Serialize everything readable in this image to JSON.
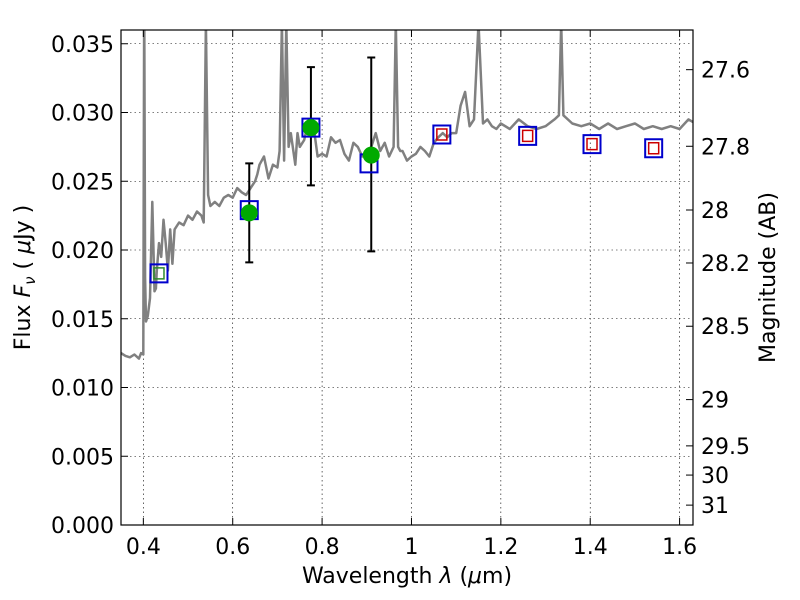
{
  "chart_data": {
    "type": "scatter",
    "title": "",
    "xlabel_parts": [
      "Wavelength  ",
      "λ",
      " (",
      "μ",
      "m)"
    ],
    "ylabel_parts": [
      "Flux  ",
      "F",
      "ν",
      "  ( ",
      "μ",
      "Jy )"
    ],
    "y2label": "Magnitude (AB)",
    "xlim": [
      0.35,
      1.63
    ],
    "ylim": [
      0.0,
      0.036
    ],
    "grid": true,
    "legend": "none",
    "x_ticks": [
      0.4,
      0.6,
      0.8,
      1.0,
      1.2,
      1.4,
      1.6
    ],
    "x_tick_labels": [
      "0.4",
      "0.6",
      "0.8",
      "1",
      "1.2",
      "1.4",
      "1.6"
    ],
    "y_ticks": [
      0.0,
      0.005,
      0.01,
      0.015,
      0.02,
      0.025,
      0.03,
      0.035
    ],
    "y_tick_labels": [
      "0.000",
      "0.005",
      "0.010",
      "0.015",
      "0.020",
      "0.025",
      "0.030",
      "0.035"
    ],
    "y2_ticks": [
      27.6,
      27.8,
      28.0,
      28.2,
      28.5,
      29.0,
      29.5,
      30.0,
      31.0
    ],
    "y2_tick_labels": [
      "27.6",
      "27.8",
      "28",
      "28.2",
      "28.5",
      "29",
      "29.5",
      "30",
      "31"
    ],
    "colors": {
      "spectrum": "#808080",
      "model_box": "#0000cc",
      "model_inner": "#cc0000",
      "model_inner_green": "#2e8b2e",
      "observed": "#00aa00",
      "errorbar": "#000000"
    },
    "series": [
      {
        "kind": "spectrum",
        "x": [
          0.35,
          0.36,
          0.37,
          0.38,
          0.39,
          0.395,
          0.4,
          0.402,
          0.404,
          0.406,
          0.41,
          0.415,
          0.42,
          0.425,
          0.428,
          0.43,
          0.435,
          0.44,
          0.445,
          0.45,
          0.455,
          0.46,
          0.465,
          0.47,
          0.48,
          0.49,
          0.5,
          0.51,
          0.52,
          0.53,
          0.535,
          0.54,
          0.545,
          0.55,
          0.56,
          0.57,
          0.58,
          0.59,
          0.6,
          0.61,
          0.62,
          0.63,
          0.64,
          0.65,
          0.655,
          0.66,
          0.67,
          0.68,
          0.69,
          0.7,
          0.705,
          0.71,
          0.715,
          0.72,
          0.725,
          0.73,
          0.74,
          0.745,
          0.75,
          0.76,
          0.77,
          0.78,
          0.79,
          0.8,
          0.81,
          0.82,
          0.83,
          0.84,
          0.85,
          0.86,
          0.87,
          0.88,
          0.89,
          0.9,
          0.91,
          0.92,
          0.93,
          0.94,
          0.95,
          0.96,
          0.965,
          0.97,
          0.975,
          0.98,
          0.99,
          1.0,
          1.01,
          1.02,
          1.03,
          1.04,
          1.05,
          1.06,
          1.07,
          1.08,
          1.09,
          1.1,
          1.11,
          1.12,
          1.13,
          1.14,
          1.15,
          1.16,
          1.17,
          1.18,
          1.19,
          1.2,
          1.22,
          1.24,
          1.26,
          1.28,
          1.3,
          1.32,
          1.33,
          1.335,
          1.34,
          1.36,
          1.38,
          1.4,
          1.42,
          1.44,
          1.46,
          1.48,
          1.5,
          1.52,
          1.54,
          1.56,
          1.58,
          1.6,
          1.62,
          1.63
        ],
        "y": [
          0.0125,
          0.0123,
          0.0122,
          0.0124,
          0.0121,
          0.0125,
          0.0124,
          0.04,
          0.018,
          0.0148,
          0.0152,
          0.0165,
          0.0235,
          0.017,
          0.0172,
          0.0185,
          0.0205,
          0.0195,
          0.0222,
          0.0205,
          0.0185,
          0.0215,
          0.019,
          0.0215,
          0.022,
          0.0218,
          0.0225,
          0.0222,
          0.0228,
          0.0225,
          0.022,
          0.0365,
          0.024,
          0.0232,
          0.0235,
          0.0232,
          0.0238,
          0.024,
          0.0238,
          0.0245,
          0.0242,
          0.024,
          0.0245,
          0.025,
          0.0255,
          0.0262,
          0.0268,
          0.0252,
          0.0262,
          0.026,
          0.0272,
          0.0365,
          0.0265,
          0.0365,
          0.0275,
          0.0285,
          0.0262,
          0.0285,
          0.0275,
          0.028,
          0.0295,
          0.0292,
          0.0268,
          0.027,
          0.0268,
          0.0282,
          0.0278,
          0.028,
          0.027,
          0.0265,
          0.0278,
          0.0275,
          0.0268,
          0.0272,
          0.0275,
          0.0285,
          0.0272,
          0.0278,
          0.0268,
          0.0275,
          0.0365,
          0.0275,
          0.0272,
          0.0272,
          0.0265,
          0.0268,
          0.027,
          0.0275,
          0.0272,
          0.0268,
          0.0278,
          0.0282,
          0.0285,
          0.0282,
          0.0285,
          0.0285,
          0.0305,
          0.0315,
          0.029,
          0.0295,
          0.0365,
          0.0292,
          0.0295,
          0.029,
          0.0288,
          0.0292,
          0.0288,
          0.0295,
          0.029,
          0.0288,
          0.029,
          0.0295,
          0.0298,
          0.0365,
          0.0298,
          0.0292,
          0.029,
          0.0292,
          0.0288,
          0.0292,
          0.0288,
          0.029,
          0.0292,
          0.0288,
          0.029,
          0.0288,
          0.029,
          0.0288,
          0.0295,
          0.0293
        ]
      },
      {
        "kind": "model-box",
        "x": [
          0.435,
          0.637,
          0.775,
          0.905,
          1.068,
          1.26,
          1.404,
          1.542
        ],
        "y": [
          0.0183,
          0.0229,
          0.0289,
          0.0263,
          0.0284,
          0.0283,
          0.0277,
          0.0274
        ],
        "inner": [
          "green",
          "none",
          "none",
          "none",
          "red",
          "red",
          "red",
          "red"
        ]
      },
      {
        "kind": "observed",
        "x": [
          0.637,
          0.775,
          0.91
        ],
        "y": [
          0.0227,
          0.0289,
          0.0269
        ],
        "err_low": [
          0.0191,
          0.0247,
          0.0199
        ],
        "err_high": [
          0.0263,
          0.0333,
          0.034
        ]
      }
    ]
  }
}
